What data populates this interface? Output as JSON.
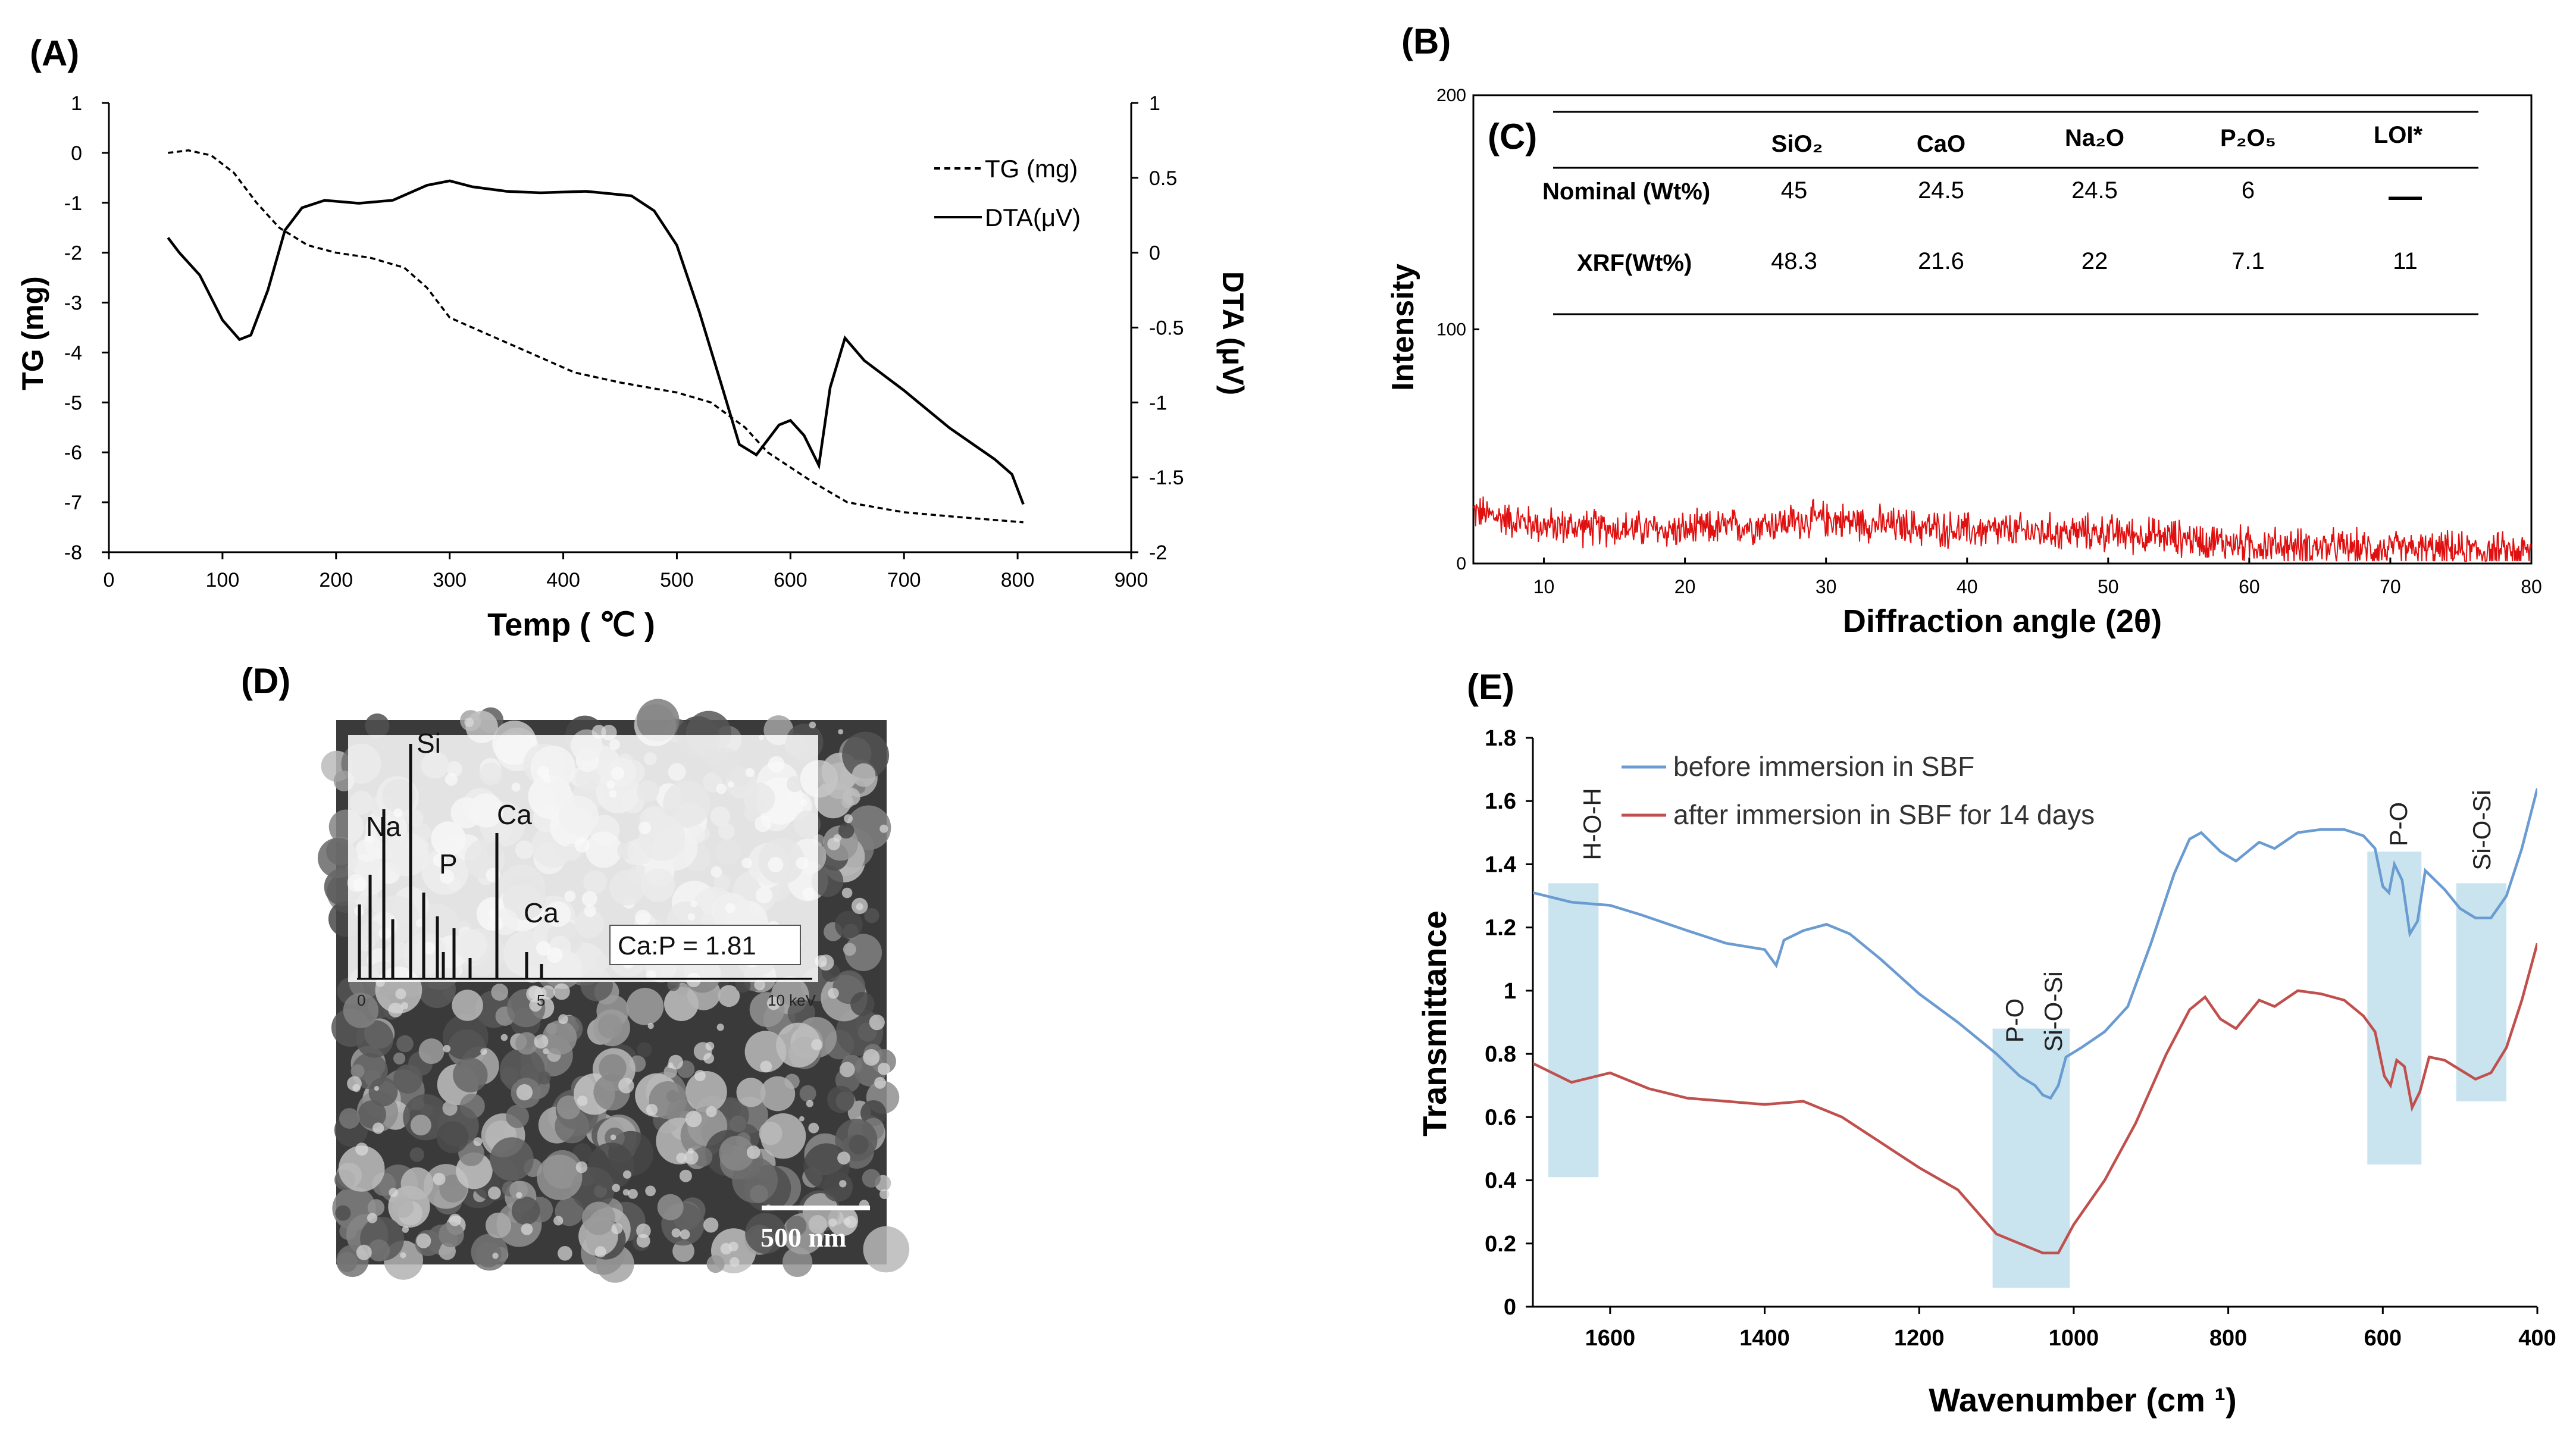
{
  "panels": {
    "A": {
      "label": "(A)"
    },
    "B": {
      "label": "(B)"
    },
    "C": {
      "label": "(C)"
    },
    "D": {
      "label": "(D)"
    },
    "E": {
      "label": "(E)"
    }
  },
  "chart_data": [
    {
      "id": "A",
      "type": "line",
      "xlabel": "Temp ( ℃ )",
      "ylabel": "TG (mg)",
      "y2label": "DTA (μV)",
      "xlim": [
        0,
        900
      ],
      "ylim": [
        -8,
        1
      ],
      "y2lim": [
        -2,
        1
      ],
      "xticks": [
        "0",
        "100",
        "200",
        "300",
        "400",
        "500",
        "600",
        "700",
        "800",
        "900"
      ],
      "yticks": [
        "1",
        "0",
        "-1",
        "-2",
        "-3",
        "-4",
        "-5",
        "-6",
        "-7",
        "-8"
      ],
      "y2ticks": [
        "1",
        "0.5",
        "0",
        "-0.5",
        "-1",
        "-1.5",
        "-2"
      ],
      "legend_position": "top-right",
      "series": [
        {
          "name": "TG (mg)",
          "axis": "left",
          "style": "dashed",
          "color": "#000000",
          "points": [
            [
              52,
              0.0
            ],
            [
              70,
              0.05
            ],
            [
              90,
              -0.05
            ],
            [
              110,
              -0.4
            ],
            [
              130,
              -1.0
            ],
            [
              150,
              -1.5
            ],
            [
              175,
              -1.85
            ],
            [
              200,
              -2.0
            ],
            [
              230,
              -2.1
            ],
            [
              260,
              -2.3
            ],
            [
              280,
              -2.7
            ],
            [
              300,
              -3.3
            ],
            [
              330,
              -3.6
            ],
            [
              370,
              -4.0
            ],
            [
              410,
              -4.4
            ],
            [
              450,
              -4.6
            ],
            [
              500,
              -4.8
            ],
            [
              530,
              -5.0
            ],
            [
              560,
              -5.5
            ],
            [
              580,
              -6.0
            ],
            [
              600,
              -6.3
            ],
            [
              620,
              -6.6
            ],
            [
              650,
              -7.0
            ],
            [
              700,
              -7.2
            ],
            [
              750,
              -7.3
            ],
            [
              805,
              -7.4
            ]
          ]
        },
        {
          "name": "DTA(μV)",
          "axis": "right",
          "style": "solid",
          "color": "#000000",
          "points": [
            [
              52,
              0.1
            ],
            [
              62,
              0.0
            ],
            [
              80,
              -0.15
            ],
            [
              100,
              -0.45
            ],
            [
              115,
              -0.58
            ],
            [
              125,
              -0.55
            ],
            [
              140,
              -0.25
            ],
            [
              155,
              0.15
            ],
            [
              170,
              0.3
            ],
            [
              190,
              0.35
            ],
            [
              220,
              0.33
            ],
            [
              250,
              0.35
            ],
            [
              280,
              0.45
            ],
            [
              300,
              0.48
            ],
            [
              320,
              0.44
            ],
            [
              350,
              0.41
            ],
            [
              380,
              0.4
            ],
            [
              420,
              0.41
            ],
            [
              460,
              0.38
            ],
            [
              480,
              0.28
            ],
            [
              500,
              0.05
            ],
            [
              520,
              -0.4
            ],
            [
              540,
              -0.9
            ],
            [
              555,
              -1.28
            ],
            [
              570,
              -1.35
            ],
            [
              590,
              -1.15
            ],
            [
              600,
              -1.12
            ],
            [
              612,
              -1.22
            ],
            [
              625,
              -1.42
            ],
            [
              635,
              -0.9
            ],
            [
              648,
              -0.57
            ],
            [
              665,
              -0.72
            ],
            [
              700,
              -0.92
            ],
            [
              740,
              -1.17
            ],
            [
              780,
              -1.38
            ],
            [
              795,
              -1.48
            ],
            [
              805,
              -1.68
            ]
          ]
        }
      ]
    },
    {
      "id": "B",
      "type": "line",
      "xlabel": "Diffraction angle (2θ)",
      "ylabel": "Intensity",
      "xlim": [
        5,
        80
      ],
      "ylim": [
        0,
        200
      ],
      "xticks": [
        "10",
        "20",
        "30",
        "40",
        "50",
        "60",
        "70",
        "80"
      ],
      "yticks": [
        "0",
        "100",
        "200"
      ],
      "series": [
        {
          "name": "",
          "color": "#e01010",
          "profile": [
            [
              5,
              22
            ],
            [
              10,
              16
            ],
            [
              20,
              14
            ],
            [
              30,
              19
            ],
            [
              35,
              16
            ],
            [
              40,
              14
            ],
            [
              50,
              13
            ],
            [
              55,
              11
            ],
            [
              60,
              8
            ],
            [
              70,
              6
            ],
            [
              80,
              5
            ]
          ],
          "noise_amplitude": 7
        }
      ]
    },
    {
      "id": "C",
      "type": "table",
      "columns": [
        "SiO₂",
        "CaO",
        "Na₂O",
        "P₂O₅",
        "LOI*"
      ],
      "rows": [
        {
          "label": "Nominal (Wt%)",
          "values": [
            "45",
            "24.5",
            "24.5",
            "6",
            "—"
          ]
        },
        {
          "label": "XRF(Wt%)",
          "values": [
            "48.3",
            "21.6",
            "22",
            "7.1",
            "11"
          ]
        }
      ]
    },
    {
      "id": "D-inset",
      "type": "bar",
      "xticks": [
        "0",
        "5",
        "10  keV"
      ],
      "peak_labels": [
        "Si",
        "Na",
        "P",
        "Ca",
        "Ca"
      ],
      "annotation": "Ca:P  = 1.81",
      "scale_bar": "500 nm"
    },
    {
      "id": "E",
      "type": "line",
      "xlabel": "Wavenumber (cm ¹)",
      "ylabel": "Transmittance",
      "xlim": [
        1700,
        400
      ],
      "ylim": [
        0,
        1.8
      ],
      "xticks": [
        "1600",
        "1400",
        "1200",
        "1000",
        "800",
        "600",
        "400"
      ],
      "yticks": [
        "0",
        "0.2",
        "0.4",
        "0.6",
        "0.8",
        "1",
        "1.2",
        "1.4",
        "1.6",
        "1.8"
      ],
      "legend_position": "top-left",
      "bands": [
        {
          "label": "H-O-H",
          "x": [
            1680,
            1615
          ],
          "y": [
            0.41,
            1.34
          ]
        },
        {
          "label": "P-O",
          "x": [
            1105,
            1005
          ],
          "y": [
            0.06,
            0.88
          ]
        },
        {
          "label": "Si-O-Si",
          "x": [
            1105,
            1005
          ],
          "y": [
            0.06,
            0.88
          ]
        },
        {
          "label": "P-O",
          "x": [
            620,
            550
          ],
          "y": [
            0.45,
            1.44
          ]
        },
        {
          "label": "Si-O-Si",
          "x": [
            505,
            440
          ],
          "y": [
            0.65,
            1.34
          ]
        }
      ],
      "series": [
        {
          "name": "before immersion in SBF",
          "color": "#6a9bd1",
          "points": [
            [
              1700,
              1.31
            ],
            [
              1650,
              1.28
            ],
            [
              1600,
              1.27
            ],
            [
              1560,
              1.24
            ],
            [
              1500,
              1.19
            ],
            [
              1450,
              1.15
            ],
            [
              1400,
              1.13
            ],
            [
              1385,
              1.08
            ],
            [
              1375,
              1.16
            ],
            [
              1350,
              1.19
            ],
            [
              1320,
              1.21
            ],
            [
              1290,
              1.18
            ],
            [
              1250,
              1.1
            ],
            [
              1200,
              0.99
            ],
            [
              1150,
              0.9
            ],
            [
              1100,
              0.8
            ],
            [
              1070,
              0.73
            ],
            [
              1050,
              0.7
            ],
            [
              1040,
              0.67
            ],
            [
              1030,
              0.66
            ],
            [
              1020,
              0.7
            ],
            [
              1010,
              0.79
            ],
            [
              990,
              0.82
            ],
            [
              960,
              0.87
            ],
            [
              930,
              0.95
            ],
            [
              900,
              1.15
            ],
            [
              870,
              1.37
            ],
            [
              850,
              1.48
            ],
            [
              835,
              1.5
            ],
            [
              810,
              1.44
            ],
            [
              790,
              1.41
            ],
            [
              760,
              1.47
            ],
            [
              740,
              1.45
            ],
            [
              710,
              1.5
            ],
            [
              680,
              1.51
            ],
            [
              650,
              1.51
            ],
            [
              625,
              1.49
            ],
            [
              610,
              1.45
            ],
            [
              600,
              1.33
            ],
            [
              592,
              1.31
            ],
            [
              585,
              1.4
            ],
            [
              575,
              1.35
            ],
            [
              565,
              1.18
            ],
            [
              555,
              1.22
            ],
            [
              545,
              1.38
            ],
            [
              520,
              1.32
            ],
            [
              500,
              1.26
            ],
            [
              480,
              1.23
            ],
            [
              460,
              1.23
            ],
            [
              440,
              1.3
            ],
            [
              420,
              1.45
            ],
            [
              400,
              1.64
            ]
          ]
        },
        {
          "name": "after immersion in SBF for 14 days",
          "color": "#c0504d",
          "points": [
            [
              1700,
              0.77
            ],
            [
              1650,
              0.71
            ],
            [
              1600,
              0.74
            ],
            [
              1550,
              0.69
            ],
            [
              1500,
              0.66
            ],
            [
              1450,
              0.65
            ],
            [
              1400,
              0.64
            ],
            [
              1350,
              0.65
            ],
            [
              1300,
              0.6
            ],
            [
              1250,
              0.52
            ],
            [
              1200,
              0.44
            ],
            [
              1150,
              0.37
            ],
            [
              1100,
              0.23
            ],
            [
              1070,
              0.2
            ],
            [
              1040,
              0.17
            ],
            [
              1020,
              0.17
            ],
            [
              1000,
              0.26
            ],
            [
              960,
              0.4
            ],
            [
              920,
              0.58
            ],
            [
              880,
              0.8
            ],
            [
              850,
              0.94
            ],
            [
              830,
              0.98
            ],
            [
              810,
              0.91
            ],
            [
              790,
              0.88
            ],
            [
              760,
              0.97
            ],
            [
              740,
              0.95
            ],
            [
              710,
              1.0
            ],
            [
              680,
              0.99
            ],
            [
              650,
              0.97
            ],
            [
              625,
              0.92
            ],
            [
              610,
              0.87
            ],
            [
              598,
              0.73
            ],
            [
              590,
              0.7
            ],
            [
              582,
              0.78
            ],
            [
              572,
              0.76
            ],
            [
              562,
              0.63
            ],
            [
              552,
              0.68
            ],
            [
              540,
              0.79
            ],
            [
              520,
              0.78
            ],
            [
              500,
              0.75
            ],
            [
              480,
              0.72
            ],
            [
              460,
              0.74
            ],
            [
              440,
              0.82
            ],
            [
              420,
              0.97
            ],
            [
              400,
              1.15
            ]
          ]
        }
      ]
    }
  ]
}
